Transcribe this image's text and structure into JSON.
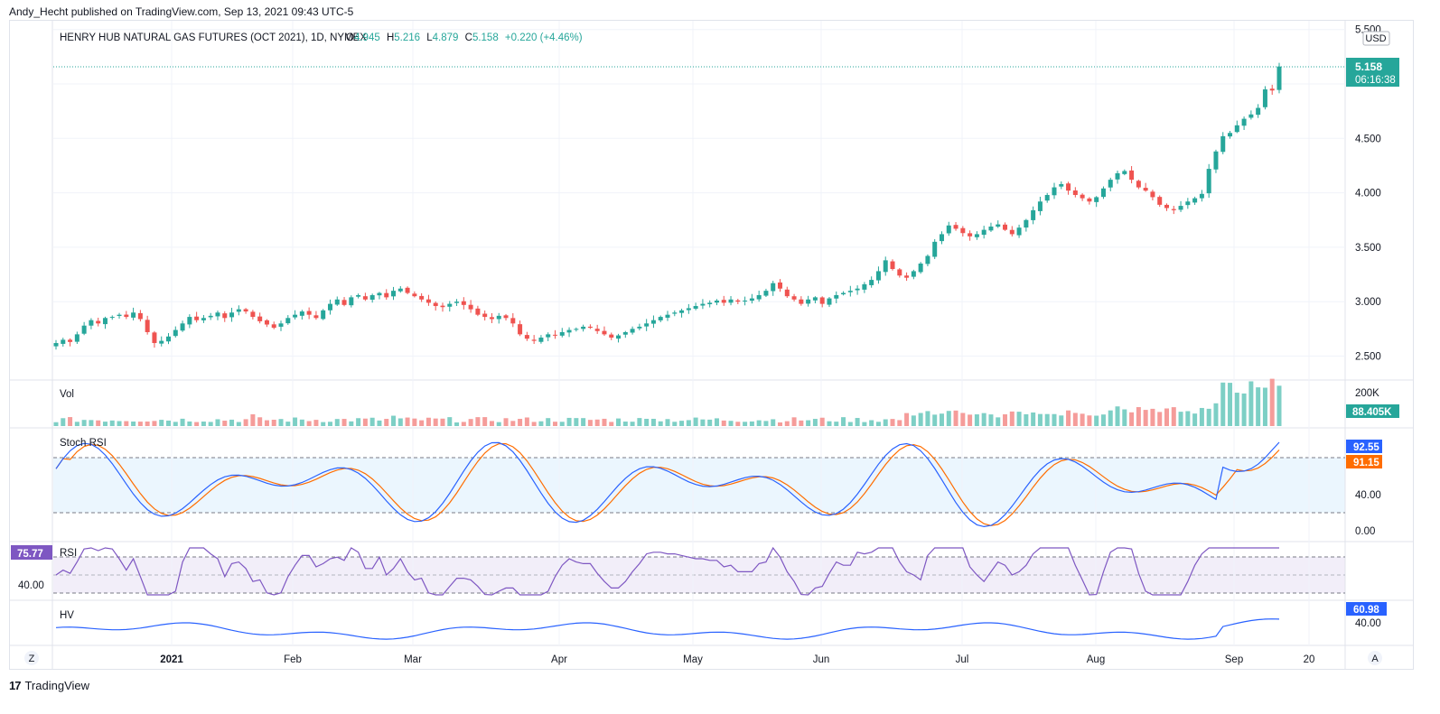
{
  "publisher": "Andy_Hecht published on TradingView.com, Sep 13, 2021 09:43 UTC-5",
  "brand": "TradingView",
  "brand_mark": "17",
  "header": {
    "symbol": "HENRY HUB NATURAL GAS FUTURES (OCT 2021), 1D, NYMEX",
    "o_label": "O",
    "o_val": "4.945",
    "h_label": "H",
    "h_val": "5.216",
    "l_label": "L",
    "l_val": "4.879",
    "c_label": "C",
    "c_val": "5.158",
    "change": "+0.220 (+4.46%)"
  },
  "currency": "USD",
  "last_price": "5.158",
  "countdown": "06:16:38",
  "price_axis": [
    "5.500",
    "5.000",
    "4.500",
    "4.000",
    "3.500",
    "3.000",
    "2.500"
  ],
  "vol": {
    "label": "Vol",
    "axis": "200K",
    "value": "88.405K"
  },
  "stoch": {
    "label": "Stoch RSI",
    "k": "92.55",
    "d": "91.15",
    "axis": [
      "40.00",
      "0.00"
    ]
  },
  "rsi": {
    "label": "RSI",
    "value": "75.77",
    "axis": "40.00"
  },
  "hv": {
    "label": "HV",
    "value": "60.98",
    "axis": "40.00"
  },
  "time_axis": [
    "2021",
    "Feb",
    "Mar",
    "Apr",
    "May",
    "Jun",
    "Jul",
    "Aug",
    "Sep",
    "20"
  ],
  "corner_left": "Z",
  "corner_right": "A",
  "colors": {
    "up": "#26a69a",
    "down": "#ef5350",
    "stoch_k": "#2962ff",
    "stoch_d": "#ff6d00",
    "rsi": "#7e57c2",
    "hv": "#2962ff"
  },
  "chart_data": {
    "type": "candlestick",
    "title": "HENRY HUB NATURAL GAS FUTURES (OCT 2021), 1D, NYMEX",
    "x_range": [
      "2020-12-15",
      "2021-09-13"
    ],
    "ylim": [
      2.4,
      5.55
    ],
    "closes": [
      2.62,
      2.65,
      2.63,
      2.7,
      2.78,
      2.83,
      2.8,
      2.85,
      2.86,
      2.88,
      2.86,
      2.9,
      2.84,
      2.72,
      2.62,
      2.64,
      2.68,
      2.74,
      2.8,
      2.86,
      2.83,
      2.85,
      2.87,
      2.9,
      2.85,
      2.9,
      2.93,
      2.91,
      2.86,
      2.82,
      2.79,
      2.76,
      2.8,
      2.85,
      2.88,
      2.91,
      2.88,
      2.85,
      2.92,
      2.98,
      3.02,
      2.97,
      3.04,
      3.06,
      3.02,
      3.06,
      3.08,
      3.04,
      3.1,
      3.12,
      3.08,
      3.05,
      3.02,
      2.99,
      2.96,
      2.95,
      2.98,
      3.0,
      2.97,
      2.93,
      2.88,
      2.86,
      2.84,
      2.87,
      2.85,
      2.8,
      2.7,
      2.66,
      2.64,
      2.67,
      2.7,
      2.69,
      2.72,
      2.74,
      2.75,
      2.77,
      2.76,
      2.73,
      2.7,
      2.67,
      2.69,
      2.72,
      2.75,
      2.77,
      2.8,
      2.83,
      2.86,
      2.88,
      2.9,
      2.92,
      2.94,
      2.96,
      2.98,
      2.99,
      3.01,
      2.99,
      3.02,
      3.0,
      3.01,
      3.03,
      3.06,
      3.1,
      3.17,
      3.12,
      3.05,
      3.02,
      2.98,
      3.02,
      3.04,
      2.98,
      3.03,
      3.06,
      3.08,
      3.1,
      3.12,
      3.16,
      3.2,
      3.28,
      3.38,
      3.3,
      3.24,
      3.22,
      3.28,
      3.35,
      3.42,
      3.55,
      3.62,
      3.7,
      3.67,
      3.63,
      3.6,
      3.62,
      3.66,
      3.69,
      3.71,
      3.66,
      3.62,
      3.68,
      3.75,
      3.84,
      3.92,
      3.98,
      4.05,
      4.08,
      4.02,
      3.98,
      3.95,
      3.92,
      3.96,
      4.04,
      4.12,
      4.18,
      4.2,
      4.12,
      4.05,
      4.02,
      3.96,
      3.89,
      3.86,
      3.84,
      3.88,
      3.92,
      3.95,
      3.99,
      4.22,
      4.38,
      4.52,
      4.55,
      4.62,
      4.68,
      4.72,
      4.78,
      4.95,
      4.94,
      5.16
    ]
  }
}
